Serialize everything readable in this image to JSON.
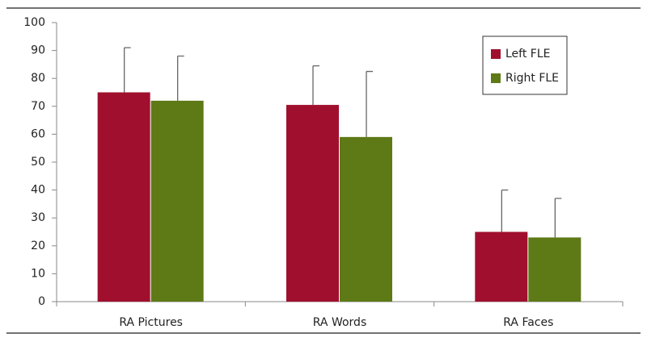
{
  "chart_data": {
    "type": "bar",
    "categories": [
      "RA Pictures",
      "RA Words",
      "RA Faces"
    ],
    "series": [
      {
        "name": "Left FLE",
        "color": "#a0102e",
        "values": [
          75,
          70.5,
          25
        ],
        "errors": [
          16,
          14,
          15
        ]
      },
      {
        "name": "Right FLE",
        "color": "#5d7a17",
        "values": [
          72,
          59,
          23
        ],
        "errors": [
          16,
          23.5,
          14
        ]
      }
    ],
    "ylim": [
      0,
      100
    ],
    "yticks": [
      0,
      10,
      20,
      30,
      40,
      50,
      60,
      70,
      80,
      90,
      100
    ],
    "grid": false,
    "legend": "upper right"
  }
}
